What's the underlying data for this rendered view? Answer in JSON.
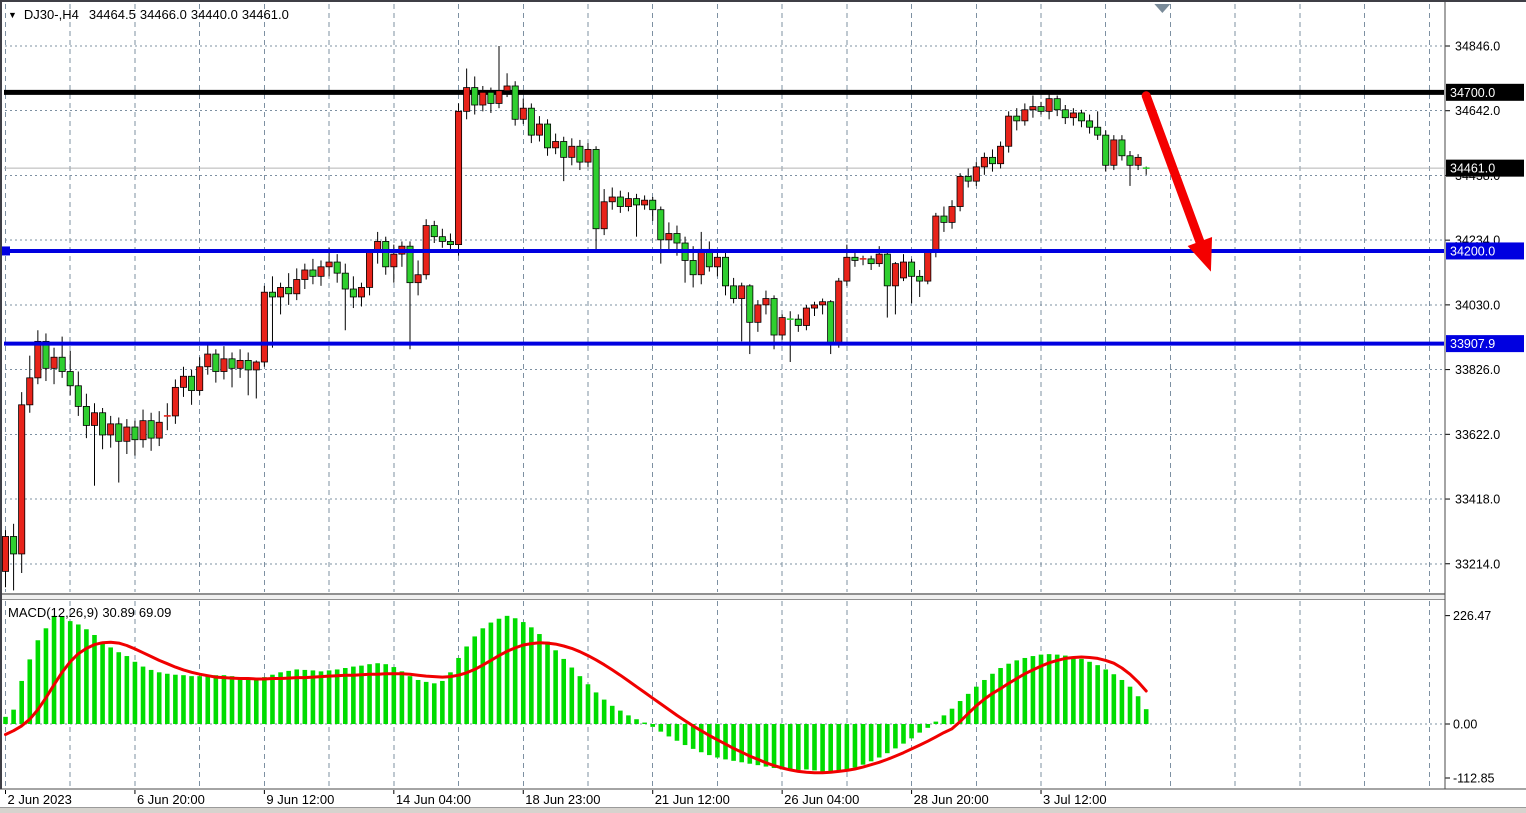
{
  "header": {
    "collapse_icon": "▼",
    "symbol": "DJ30-,H4",
    "ohlc": {
      "open": "34464.5",
      "high": "34466.0",
      "low": "34440.0",
      "close": "34461.0"
    }
  },
  "macd_header": {
    "name_with_params": "MACD(12,26,9)",
    "main": "30.89",
    "signal": "69.09"
  },
  "chart_data": {
    "type": "candlestick_with_macd",
    "symbol": "DJ30-",
    "timeframe": "H4",
    "price_axis": {
      "ticks": [
        34846.0,
        34642.0,
        34438.0,
        34234.0,
        34030.0,
        33826.0,
        33622.0,
        33418.0,
        33214.0
      ],
      "tick_labels": [
        "34846.0",
        "34642.0",
        "34438.0",
        "34234.0",
        "34030.0",
        "33826.0",
        "33622.0",
        "33418.0",
        "33214.0"
      ],
      "tick_step": 204,
      "badges": [
        {
          "value": 34700.0,
          "label": "34700.0",
          "bg": "#000000"
        },
        {
          "value": 34461.0,
          "label": "34461.0",
          "bg": "#000000"
        },
        {
          "value": 34200.0,
          "label": "34200.0",
          "bg": "#0000e0"
        },
        {
          "value": 33907.9,
          "label": "33907.9",
          "bg": "#0000e0"
        }
      ]
    },
    "time_axis": {
      "labels": [
        {
          "k": 0,
          "label": "2 Jun 2023"
        },
        {
          "k": 2,
          "label": "6 Jun 20:00"
        },
        {
          "k": 4,
          "label": "9 Jun 12:00"
        },
        {
          "k": 6,
          "label": "14 Jun 04:00"
        },
        {
          "k": 8,
          "label": "18 Jun 23:00"
        },
        {
          "k": 10,
          "label": "21 Jun 12:00"
        },
        {
          "k": 12,
          "label": "26 Jun 04:00"
        },
        {
          "k": 14,
          "label": "28 Jun 20:00"
        },
        {
          "k": 16,
          "label": "3 Jul 12:00"
        }
      ]
    },
    "hlines": [
      {
        "value": 34700.0,
        "color": "#000000",
        "width": 5,
        "name": "resistance-line-34700",
        "front": false,
        "handle": false
      },
      {
        "value": 34461.0,
        "color": "#b4b4b4",
        "width": 1,
        "name": "bid-price-line",
        "front": false,
        "handle": false
      },
      {
        "value": 34200.0,
        "color": "#0000e0",
        "width": 4,
        "name": "support-line-34200",
        "front": true,
        "handle": true
      },
      {
        "value": 33907.9,
        "color": "#0000e0",
        "width": 4,
        "name": "support-line-33907",
        "front": true,
        "handle": false
      }
    ],
    "arrow": {
      "from_bar": 141,
      "from_price": 34689,
      "to_bar": 149,
      "to_price": 34135,
      "color": "#f40000"
    },
    "current_bar_marker": {
      "bar": 143
    },
    "colors": {
      "bull": "#e8231a",
      "bear": "#2fcf2f",
      "wick": "#000000",
      "macd_hist": "#00dc00",
      "macd_signal": "#f00000",
      "grid": "#7d90a2",
      "badge_text": "#ffffff",
      "axis_text": "#000000"
    },
    "candles": [
      [
        33190,
        33320,
        33140,
        33300
      ],
      [
        33300,
        33340,
        33130,
        33245
      ],
      [
        33245,
        33755,
        33185,
        33715
      ],
      [
        33715,
        33870,
        33690,
        33800
      ],
      [
        33800,
        33950,
        33780,
        33915
      ],
      [
        33915,
        33940,
        33790,
        33830
      ],
      [
        33830,
        33895,
        33780,
        33865
      ],
      [
        33865,
        33930,
        33800,
        33820
      ],
      [
        33820,
        33885,
        33745,
        33775
      ],
      [
        33775,
        33820,
        33680,
        33710
      ],
      [
        33710,
        33750,
        33610,
        33650
      ],
      [
        33650,
        33720,
        33460,
        33690
      ],
      [
        33690,
        33705,
        33575,
        33620
      ],
      [
        33620,
        33680,
        33580,
        33655
      ],
      [
        33655,
        33675,
        33470,
        33600
      ],
      [
        33600,
        33670,
        33560,
        33645
      ],
      [
        33645,
        33665,
        33555,
        33605
      ],
      [
        33605,
        33700,
        33580,
        33665
      ],
      [
        33665,
        33690,
        33570,
        33610
      ],
      [
        33610,
        33695,
        33585,
        33660
      ],
      [
        33680,
        33720,
        33635,
        33680
      ],
      [
        33680,
        33795,
        33655,
        33770
      ],
      [
        33770,
        33835,
        33740,
        33805
      ],
      [
        33805,
        33825,
        33715,
        33760
      ],
      [
        33760,
        33865,
        33745,
        33835
      ],
      [
        33835,
        33905,
        33810,
        33875
      ],
      [
        33875,
        33890,
        33785,
        33820
      ],
      [
        33820,
        33900,
        33795,
        33860
      ],
      [
        33860,
        33880,
        33770,
        33830
      ],
      [
        33830,
        33890,
        33800,
        33855
      ],
      [
        33855,
        33880,
        33745,
        33825
      ],
      [
        33825,
        33855,
        33735,
        33850
      ],
      [
        33850,
        34090,
        33835,
        34070
      ],
      [
        34070,
        34120,
        33895,
        34055
      ],
      [
        34055,
        34100,
        34000,
        34085
      ],
      [
        34085,
        34130,
        34030,
        34065
      ],
      [
        34065,
        34145,
        34045,
        34110
      ],
      [
        34110,
        34160,
        34080,
        34140
      ],
      [
        34140,
        34175,
        34095,
        34120
      ],
      [
        34120,
        34170,
        34090,
        34150
      ],
      [
        34150,
        34210,
        34120,
        34165
      ],
      [
        34165,
        34190,
        34100,
        34130
      ],
      [
        34130,
        34160,
        33950,
        34080
      ],
      [
        34080,
        34120,
        34020,
        34055
      ],
      [
        34055,
        34100,
        34025,
        34085
      ],
      [
        34085,
        34205,
        34060,
        34195
      ],
      [
        34195,
        34260,
        34160,
        34230
      ],
      [
        34230,
        34245,
        34125,
        34150
      ],
      [
        34150,
        34220,
        34100,
        34190
      ],
      [
        34190,
        34230,
        34150,
        34215
      ],
      [
        34215,
        34230,
        33890,
        34100
      ],
      [
        34100,
        34170,
        34060,
        34125
      ],
      [
        34125,
        34300,
        34110,
        34280
      ],
      [
        34280,
        34295,
        34225,
        34245
      ],
      [
        34245,
        34270,
        34210,
        34230
      ],
      [
        34230,
        34255,
        34195,
        34220
      ],
      [
        34220,
        34665,
        34185,
        34640
      ],
      [
        34640,
        34775,
        34615,
        34715
      ],
      [
        34715,
        34750,
        34630,
        34660
      ],
      [
        34660,
        34720,
        34640,
        34700
      ],
      [
        34700,
        34715,
        34635,
        34665
      ],
      [
        34665,
        34846,
        34650,
        34705
      ],
      [
        34705,
        34760,
        34685,
        34720
      ],
      [
        34720,
        34735,
        34595,
        34615
      ],
      [
        34615,
        34680,
        34600,
        34650
      ],
      [
        34650,
        34665,
        34540,
        34565
      ],
      [
        34565,
        34625,
        34545,
        34600
      ],
      [
        34600,
        34615,
        34500,
        34525
      ],
      [
        34525,
        34570,
        34505,
        34545
      ],
      [
        34545,
        34560,
        34420,
        34495
      ],
      [
        34495,
        34555,
        34470,
        34530
      ],
      [
        34530,
        34550,
        34455,
        34480
      ],
      [
        34480,
        34540,
        34465,
        34520
      ],
      [
        34520,
        34530,
        34205,
        34270
      ],
      [
        34270,
        34395,
        34250,
        34355
      ],
      [
        34355,
        34400,
        34330,
        34370
      ],
      [
        34370,
        34390,
        34320,
        34340
      ],
      [
        34340,
        34385,
        34325,
        34365
      ],
      [
        34365,
        34380,
        34245,
        34345
      ],
      [
        34345,
        34375,
        34330,
        34360
      ],
      [
        34360,
        34370,
        34295,
        34330
      ],
      [
        34330,
        34340,
        34160,
        34235
      ],
      [
        34235,
        34290,
        34200,
        34255
      ],
      [
        34255,
        34280,
        34185,
        34225
      ],
      [
        34225,
        34245,
        34100,
        34170
      ],
      [
        34170,
        34215,
        34085,
        34125
      ],
      [
        34125,
        34260,
        34095,
        34205
      ],
      [
        34205,
        34230,
        34135,
        34150
      ],
      [
        34150,
        34200,
        34120,
        34180
      ],
      [
        34180,
        34195,
        34060,
        34090
      ],
      [
        34090,
        34115,
        34035,
        34050
      ],
      [
        34050,
        34100,
        33915,
        34090
      ],
      [
        34090,
        34095,
        33875,
        33975
      ],
      [
        33975,
        34045,
        33945,
        34030
      ],
      [
        34030,
        34075,
        34000,
        34050
      ],
      [
        34050,
        34060,
        33890,
        33935
      ],
      [
        33935,
        34000,
        33920,
        33990
      ],
      [
        33990,
        34010,
        33850,
        33985
      ],
      [
        33985,
        34000,
        33945,
        33965
      ],
      [
        33965,
        34030,
        33950,
        34020
      ],
      [
        34020,
        34040,
        33995,
        34030
      ],
      [
        34030,
        34050,
        34000,
        34040
      ],
      [
        34040,
        34045,
        33875,
        33910
      ],
      [
        33910,
        34115,
        33895,
        34105
      ],
      [
        34105,
        34220,
        34090,
        34180
      ],
      [
        34180,
        34200,
        34150,
        34170
      ],
      [
        34170,
        34185,
        34155,
        34175
      ],
      [
        34175,
        34185,
        34140,
        34160
      ],
      [
        34160,
        34215,
        34150,
        34190
      ],
      [
        34190,
        34200,
        33990,
        34090
      ],
      [
        34090,
        34165,
        34000,
        34160
      ],
      [
        34115,
        34190,
        34105,
        34165
      ],
      [
        34165,
        34175,
        34035,
        34120
      ],
      [
        34120,
        34140,
        34055,
        34105
      ],
      [
        34105,
        34205,
        34095,
        34200
      ],
      [
        34200,
        34320,
        34180,
        34310
      ],
      [
        34310,
        34340,
        34260,
        34290
      ],
      [
        34290,
        34360,
        34270,
        34340
      ],
      [
        34340,
        34445,
        34325,
        34435
      ],
      [
        34435,
        34460,
        34400,
        34420
      ],
      [
        34420,
        34480,
        34405,
        34465
      ],
      [
        34465,
        34510,
        34440,
        34495
      ],
      [
        34495,
        34520,
        34450,
        34475
      ],
      [
        34475,
        34545,
        34460,
        34530
      ],
      [
        34530,
        34640,
        34510,
        34625
      ],
      [
        34625,
        34650,
        34580,
        34610
      ],
      [
        34610,
        34665,
        34595,
        34645
      ],
      [
        34645,
        34690,
        34620,
        34655
      ],
      [
        34655,
        34670,
        34630,
        34640
      ],
      [
        34640,
        34700,
        34615,
        34680
      ],
      [
        34680,
        34690,
        34625,
        34645
      ],
      [
        34645,
        34660,
        34600,
        34620
      ],
      [
        34620,
        34650,
        34595,
        34635
      ],
      [
        34635,
        34645,
        34590,
        34610
      ],
      [
        34610,
        34630,
        34570,
        34590
      ],
      [
        34590,
        34640,
        34550,
        34565
      ],
      [
        34565,
        34580,
        34450,
        34470
      ],
      [
        34470,
        34565,
        34455,
        34550
      ],
      [
        34550,
        34565,
        34485,
        34500
      ],
      [
        34500,
        34515,
        34405,
        34470
      ],
      [
        34470,
        34505,
        34455,
        34495
      ],
      [
        34464.5,
        34466,
        34440,
        34461
      ]
    ],
    "macd": {
      "axis": {
        "max": 226.47,
        "min": -112.85,
        "max_label": "226.47",
        "zero_label": "0.00",
        "min_label": "-112.85"
      },
      "hist": [
        15,
        30,
        90,
        135,
        175,
        200,
        226,
        224,
        215,
        208,
        198,
        186,
        172,
        160,
        150,
        142,
        130,
        120,
        113,
        108,
        105,
        103,
        102,
        100,
        100,
        101,
        102,
        102,
        100,
        98,
        97,
        96,
        98,
        103,
        108,
        111,
        114,
        113,
        112,
        110,
        112,
        114,
        117,
        120,
        122,
        125,
        127,
        125,
        119,
        110,
        100,
        92,
        88,
        85,
        90,
        108,
        138,
        162,
        183,
        200,
        212,
        220,
        226,
        221,
        213,
        202,
        188,
        172,
        154,
        136,
        118,
        100,
        83,
        66,
        51,
        38,
        28,
        18,
        10,
        3,
        -6,
        -16,
        -26,
        -35,
        -44,
        -52,
        -59,
        -65,
        -70,
        -74,
        -77,
        -80,
        -83,
        -86,
        -89,
        -92,
        -95,
        -97,
        -96,
        -95,
        -97,
        -100,
        -102,
        -100,
        -96,
        -91,
        -85,
        -78,
        -70,
        -61,
        -51,
        -41,
        -30,
        -18,
        -8,
        5,
        18,
        32,
        48,
        63,
        78,
        92,
        105,
        117,
        126,
        133,
        138,
        142,
        145,
        146,
        145,
        143,
        140,
        136,
        130,
        123,
        114,
        104,
        92,
        78,
        58,
        31
      ],
      "signal": [
        -22,
        -14,
        -4,
        10,
        30,
        55,
        82,
        108,
        130,
        147,
        158,
        166,
        170,
        171,
        169,
        164,
        157,
        149,
        141,
        133,
        126,
        119,
        113,
        108,
        104,
        101,
        98,
        97,
        96,
        95,
        95,
        94,
        94,
        95,
        95,
        96,
        97,
        97,
        98,
        99,
        100,
        101,
        102,
        102,
        103,
        104,
        104,
        105,
        105,
        105,
        104,
        102,
        100,
        99,
        98,
        99,
        102,
        107,
        114,
        123,
        133,
        143,
        152,
        159,
        165,
        168,
        170,
        169,
        167,
        163,
        158,
        151,
        143,
        134,
        124,
        113,
        102,
        90,
        78,
        66,
        54,
        42,
        30,
        18,
        7,
        -4,
        -14,
        -24,
        -33,
        -42,
        -51,
        -59,
        -67,
        -74,
        -81,
        -87,
        -92,
        -96,
        -99,
        -101,
        -102,
        -102,
        -101,
        -99,
        -97,
        -94,
        -90,
        -85,
        -80,
        -74,
        -67,
        -60,
        -52,
        -44,
        -36,
        -27,
        -18,
        -10,
        5,
        22,
        38,
        52,
        64,
        74,
        85,
        95,
        105,
        113,
        121,
        128,
        133,
        137,
        139,
        140,
        139,
        137,
        133,
        127,
        117,
        104,
        88,
        69
      ]
    }
  }
}
